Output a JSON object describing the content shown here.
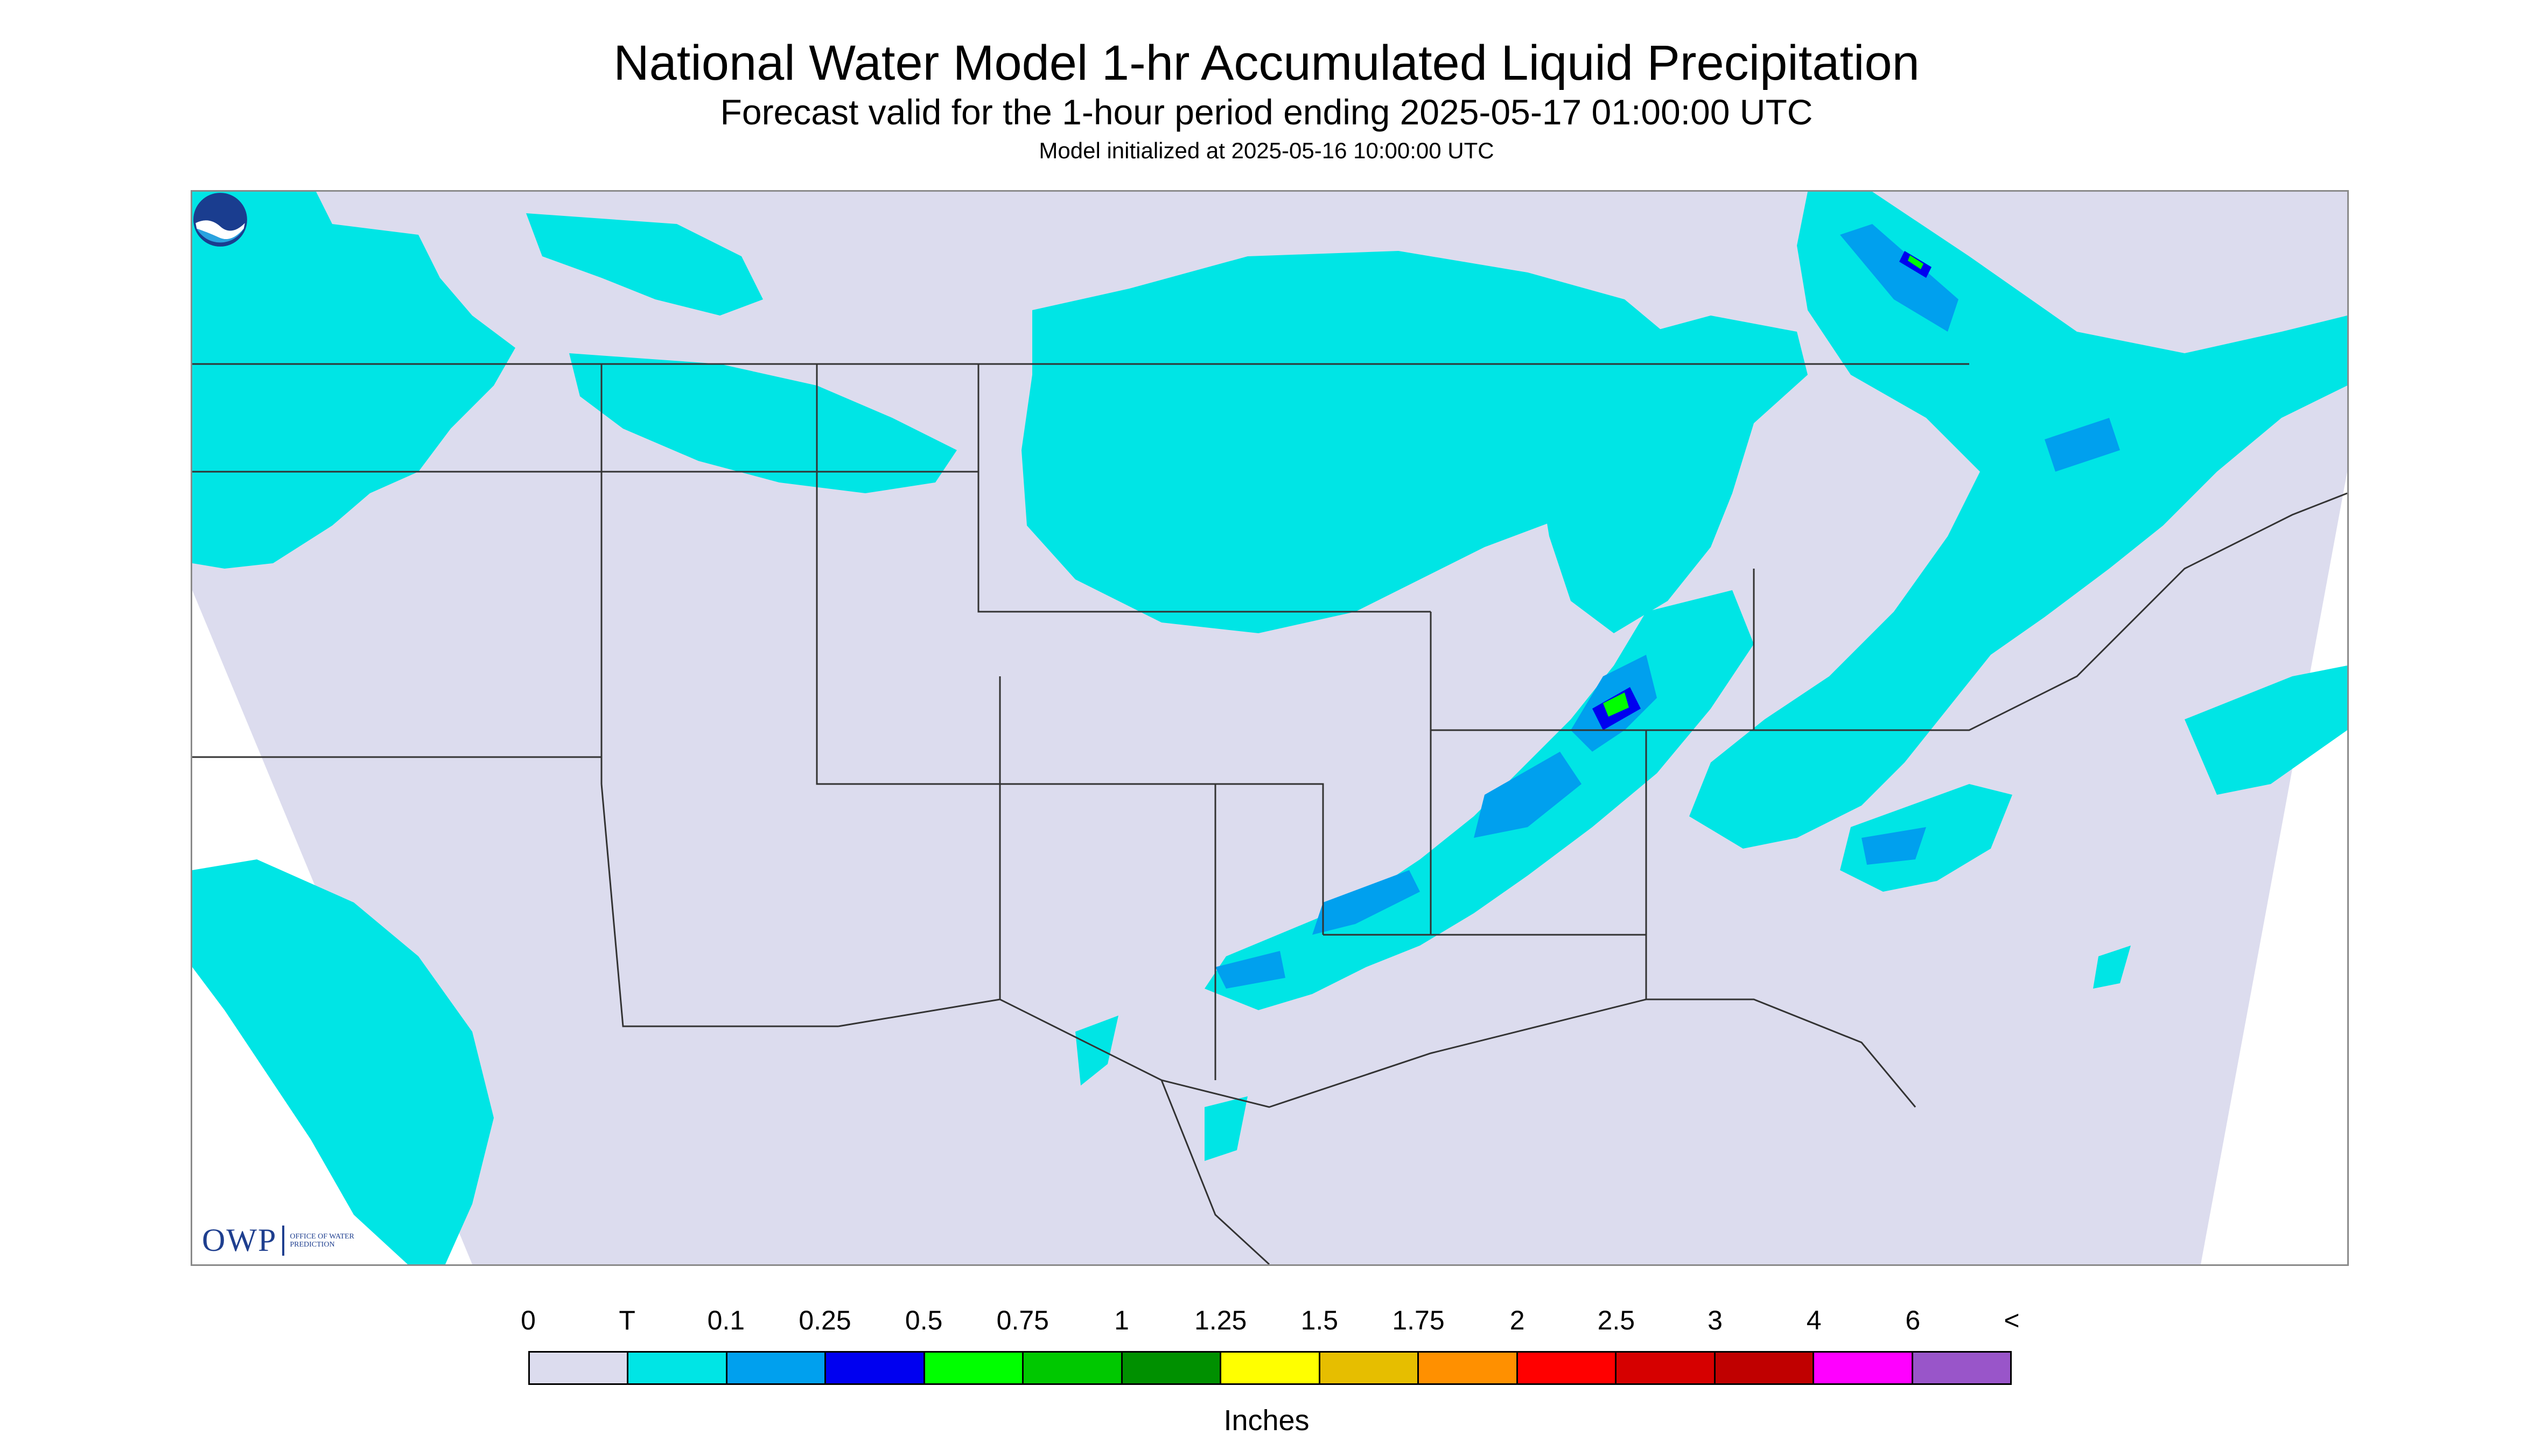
{
  "header": {
    "title": "National Water Model 1-hr Accumulated Liquid Precipitation",
    "subtitle": "Forecast valid for the 1-hour period ending 2025-05-17 01:00:00 UTC",
    "init": "Model initialized at 2025-05-16 10:00:00 UTC"
  },
  "logos": {
    "owp_mark": "OWP",
    "owp_text": "OFFICE OF WATER PREDICTION",
    "noaa_text": "NOAA"
  },
  "colors": {
    "domain_background": "#dcdcee",
    "trace": "#00e5e5",
    "light": "#00a0ee",
    "boundaries": "#333333",
    "frame": "#8a8a8a"
  },
  "legend": {
    "labels": [
      "0",
      "T",
      "0.1",
      "0.25",
      "0.5",
      "0.75",
      "1",
      "1.25",
      "1.5",
      "1.75",
      "2",
      "2.5",
      "3",
      "4",
      "6",
      "<"
    ],
    "colors": [
      "#dcdcee",
      "#00e5e5",
      "#00a0ee",
      "#0000f0",
      "#00ff00",
      "#00c800",
      "#009000",
      "#ffff00",
      "#e6be00",
      "#ff9000",
      "#ff0000",
      "#d60000",
      "#c00000",
      "#ff00ff",
      "#9955c9"
    ],
    "units": "Inches"
  },
  "map": {
    "domain": "CONUS"
  }
}
